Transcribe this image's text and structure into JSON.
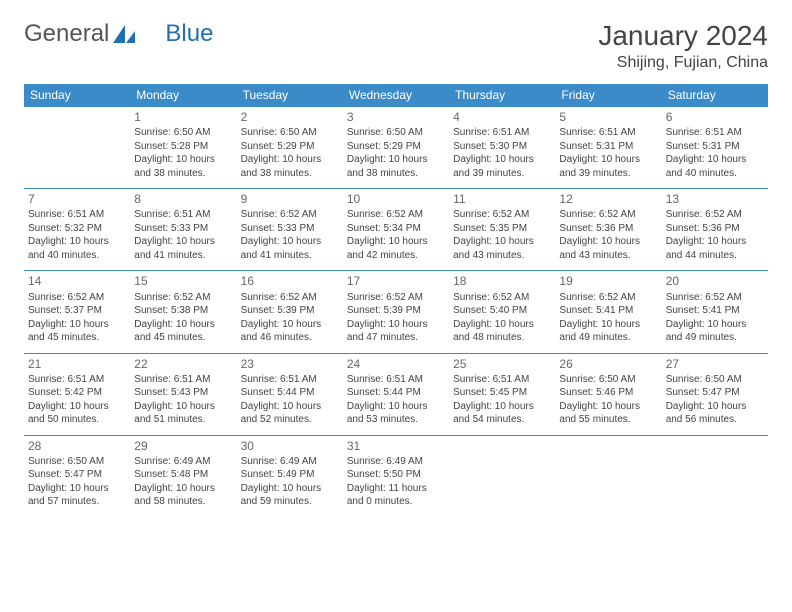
{
  "logo": {
    "text1": "General",
    "text2": "Blue"
  },
  "title": "January 2024",
  "location": "Shijing, Fujian, China",
  "colors": {
    "header_bg": "#3b8bc9",
    "header_text": "#ffffff",
    "border": "#3b8bc9",
    "text": "#444444",
    "logo_gray": "#555555",
    "logo_blue": "#1f6fb2"
  },
  "weekdays": [
    "Sunday",
    "Monday",
    "Tuesday",
    "Wednesday",
    "Thursday",
    "Friday",
    "Saturday"
  ],
  "weeks": [
    [
      null,
      {
        "n": "1",
        "sr": "6:50 AM",
        "ss": "5:28 PM",
        "dl": "10 hours and 38 minutes."
      },
      {
        "n": "2",
        "sr": "6:50 AM",
        "ss": "5:29 PM",
        "dl": "10 hours and 38 minutes."
      },
      {
        "n": "3",
        "sr": "6:50 AM",
        "ss": "5:29 PM",
        "dl": "10 hours and 38 minutes."
      },
      {
        "n": "4",
        "sr": "6:51 AM",
        "ss": "5:30 PM",
        "dl": "10 hours and 39 minutes."
      },
      {
        "n": "5",
        "sr": "6:51 AM",
        "ss": "5:31 PM",
        "dl": "10 hours and 39 minutes."
      },
      {
        "n": "6",
        "sr": "6:51 AM",
        "ss": "5:31 PM",
        "dl": "10 hours and 40 minutes."
      }
    ],
    [
      {
        "n": "7",
        "sr": "6:51 AM",
        "ss": "5:32 PM",
        "dl": "10 hours and 40 minutes."
      },
      {
        "n": "8",
        "sr": "6:51 AM",
        "ss": "5:33 PM",
        "dl": "10 hours and 41 minutes."
      },
      {
        "n": "9",
        "sr": "6:52 AM",
        "ss": "5:33 PM",
        "dl": "10 hours and 41 minutes."
      },
      {
        "n": "10",
        "sr": "6:52 AM",
        "ss": "5:34 PM",
        "dl": "10 hours and 42 minutes."
      },
      {
        "n": "11",
        "sr": "6:52 AM",
        "ss": "5:35 PM",
        "dl": "10 hours and 43 minutes."
      },
      {
        "n": "12",
        "sr": "6:52 AM",
        "ss": "5:36 PM",
        "dl": "10 hours and 43 minutes."
      },
      {
        "n": "13",
        "sr": "6:52 AM",
        "ss": "5:36 PM",
        "dl": "10 hours and 44 minutes."
      }
    ],
    [
      {
        "n": "14",
        "sr": "6:52 AM",
        "ss": "5:37 PM",
        "dl": "10 hours and 45 minutes."
      },
      {
        "n": "15",
        "sr": "6:52 AM",
        "ss": "5:38 PM",
        "dl": "10 hours and 45 minutes."
      },
      {
        "n": "16",
        "sr": "6:52 AM",
        "ss": "5:39 PM",
        "dl": "10 hours and 46 minutes."
      },
      {
        "n": "17",
        "sr": "6:52 AM",
        "ss": "5:39 PM",
        "dl": "10 hours and 47 minutes."
      },
      {
        "n": "18",
        "sr": "6:52 AM",
        "ss": "5:40 PM",
        "dl": "10 hours and 48 minutes."
      },
      {
        "n": "19",
        "sr": "6:52 AM",
        "ss": "5:41 PM",
        "dl": "10 hours and 49 minutes."
      },
      {
        "n": "20",
        "sr": "6:52 AM",
        "ss": "5:41 PM",
        "dl": "10 hours and 49 minutes."
      }
    ],
    [
      {
        "n": "21",
        "sr": "6:51 AM",
        "ss": "5:42 PM",
        "dl": "10 hours and 50 minutes."
      },
      {
        "n": "22",
        "sr": "6:51 AM",
        "ss": "5:43 PM",
        "dl": "10 hours and 51 minutes."
      },
      {
        "n": "23",
        "sr": "6:51 AM",
        "ss": "5:44 PM",
        "dl": "10 hours and 52 minutes."
      },
      {
        "n": "24",
        "sr": "6:51 AM",
        "ss": "5:44 PM",
        "dl": "10 hours and 53 minutes."
      },
      {
        "n": "25",
        "sr": "6:51 AM",
        "ss": "5:45 PM",
        "dl": "10 hours and 54 minutes."
      },
      {
        "n": "26",
        "sr": "6:50 AM",
        "ss": "5:46 PM",
        "dl": "10 hours and 55 minutes."
      },
      {
        "n": "27",
        "sr": "6:50 AM",
        "ss": "5:47 PM",
        "dl": "10 hours and 56 minutes."
      }
    ],
    [
      {
        "n": "28",
        "sr": "6:50 AM",
        "ss": "5:47 PM",
        "dl": "10 hours and 57 minutes."
      },
      {
        "n": "29",
        "sr": "6:49 AM",
        "ss": "5:48 PM",
        "dl": "10 hours and 58 minutes."
      },
      {
        "n": "30",
        "sr": "6:49 AM",
        "ss": "5:49 PM",
        "dl": "10 hours and 59 minutes."
      },
      {
        "n": "31",
        "sr": "6:49 AM",
        "ss": "5:50 PM",
        "dl": "11 hours and 0 minutes."
      },
      null,
      null,
      null
    ]
  ],
  "labels": {
    "sunrise": "Sunrise: ",
    "sunset": "Sunset: ",
    "daylight": "Daylight: "
  }
}
